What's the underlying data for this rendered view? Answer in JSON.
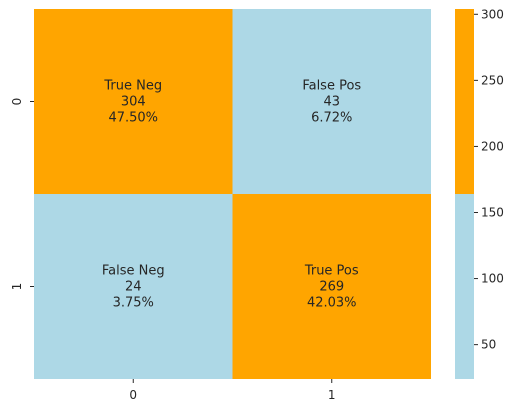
{
  "chart_data": {
    "type": "heatmap",
    "title": "",
    "xlabel": "",
    "ylabel": "",
    "x_categories": [
      "0",
      "1"
    ],
    "y_categories": [
      "0",
      "1"
    ],
    "values": [
      [
        304,
        43
      ],
      [
        24,
        269
      ]
    ],
    "cell_labels": [
      [
        [
          "True Neg",
          "304",
          "47.50%"
        ],
        [
          "False Pos",
          "43",
          "6.72%"
        ]
      ],
      [
        [
          "False Neg",
          "24",
          "3.75%"
        ],
        [
          "True Pos",
          "269",
          "42.03%"
        ]
      ]
    ],
    "colormap": {
      "low_color": "#add8e6",
      "high_color": "#ffa500",
      "threshold": 164,
      "vmin": 24,
      "vmax": 304
    },
    "colorbar": {
      "ticks": [
        "50",
        "100",
        "150",
        "200",
        "250",
        "300"
      ],
      "tick_values": [
        50,
        100,
        150,
        200,
        250,
        300
      ]
    }
  }
}
